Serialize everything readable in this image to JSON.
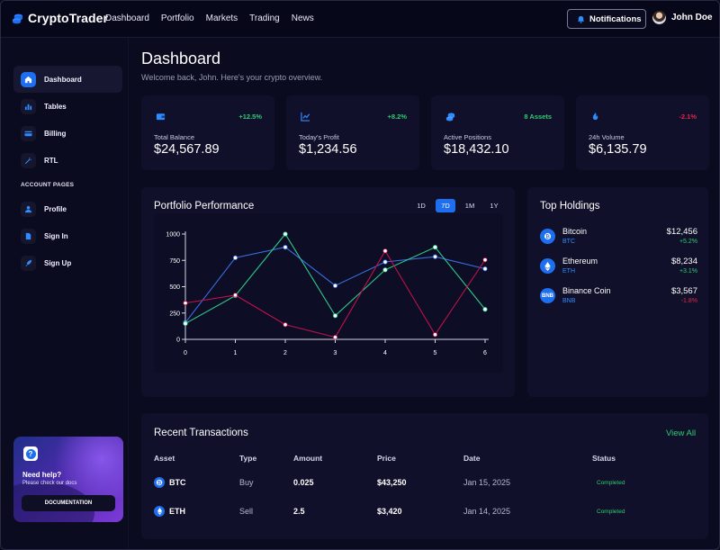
{
  "app": {
    "name": "CryptoTrader"
  },
  "nav": {
    "items": [
      "Dashboard",
      "Portfolio",
      "Markets",
      "Trading",
      "News"
    ]
  },
  "header": {
    "notifications_label": "Notifications",
    "user_name": "John Doe"
  },
  "sidebar": {
    "items": [
      {
        "label": "Dashboard",
        "icon": "home-icon",
        "active": true
      },
      {
        "label": "Tables",
        "icon": "bar-chart-icon"
      },
      {
        "label": "Billing",
        "icon": "credit-card-icon"
      },
      {
        "label": "RTL",
        "icon": "wrench-icon"
      }
    ],
    "section_title": "ACCOUNT PAGES",
    "account_items": [
      {
        "label": "Profile",
        "icon": "user-icon"
      },
      {
        "label": "Sign In",
        "icon": "document-icon"
      },
      {
        "label": "Sign Up",
        "icon": "rocket-icon"
      }
    ],
    "help": {
      "icon_text": "?",
      "title": "Need help?",
      "subtitle": "Please check our docs",
      "button": "DOCUMENTATION"
    }
  },
  "page": {
    "title": "Dashboard",
    "subtitle": "Welcome back, John. Here's your crypto overview."
  },
  "stats": [
    {
      "label": "Total Balance",
      "value": "$24,567.89",
      "change": "+12.5%",
      "trend": "up",
      "icon": "wallet-icon"
    },
    {
      "label": "Today's Profit",
      "value": "$1,234.56",
      "change": "+8.2%",
      "trend": "up",
      "icon": "line-chart-icon"
    },
    {
      "label": "Active Positions",
      "value": "$18,432.10",
      "change": "8 Assets",
      "trend": "up",
      "icon": "coins-icon"
    },
    {
      "label": "24h Volume",
      "value": "$6,135.79",
      "change": "-2.1%",
      "trend": "down",
      "icon": "fire-icon"
    }
  ],
  "performance": {
    "title": "Portfolio Performance",
    "ranges": [
      "1D",
      "7D",
      "1M",
      "1Y"
    ],
    "selected_range": "7D"
  },
  "chart_data": {
    "type": "line",
    "x": [
      0,
      1,
      2,
      3,
      4,
      5,
      6
    ],
    "ylim": [
      0,
      1000
    ],
    "yticks": [
      0,
      250,
      500,
      750,
      1000
    ],
    "grid": false,
    "series": [
      {
        "color": "#3b6fe0",
        "values": [
          160,
          775,
          875,
          510,
          735,
          785,
          670
        ]
      },
      {
        "color": "#2ecc8a",
        "values": [
          150,
          415,
          1000,
          225,
          660,
          875,
          285
        ]
      },
      {
        "color": "#c0124a",
        "values": [
          345,
          420,
          140,
          20,
          840,
          45,
          755
        ]
      }
    ]
  },
  "holdings": {
    "title": "Top Holdings",
    "items": [
      {
        "name": "Bitcoin",
        "symbol": "BTC",
        "value": "$12,456",
        "change": "+5.2%",
        "trend": "up",
        "icon": "bitcoin-icon"
      },
      {
        "name": "Ethereum",
        "symbol": "ETH",
        "value": "$8,234",
        "change": "+3.1%",
        "trend": "up",
        "icon": "ethereum-icon"
      },
      {
        "name": "Binance Coin",
        "symbol": "BNB",
        "value": "$3,567",
        "change": "-1.8%",
        "trend": "down",
        "icon_text": "BNB"
      }
    ]
  },
  "transactions": {
    "title": "Recent Transactions",
    "view_all": "View All",
    "columns": [
      "Asset",
      "Type",
      "Amount",
      "Price",
      "Date",
      "Status"
    ],
    "rows": [
      {
        "asset": "BTC",
        "type": "Buy",
        "amount": "0.025",
        "price": "$43,250",
        "date": "Jan 15, 2025",
        "status": "Completed",
        "icon": "bitcoin-icon"
      },
      {
        "asset": "ETH",
        "type": "Sell",
        "amount": "2.5",
        "price": "$3,420",
        "date": "Jan 14, 2025",
        "status": "Completed",
        "icon": "ethereum-icon"
      }
    ]
  },
  "colors": {
    "accent": "#1e6ef0",
    "positive": "#2ecc71",
    "negative": "#e0264a",
    "background": "#0b0b20",
    "card": "#10102a"
  }
}
